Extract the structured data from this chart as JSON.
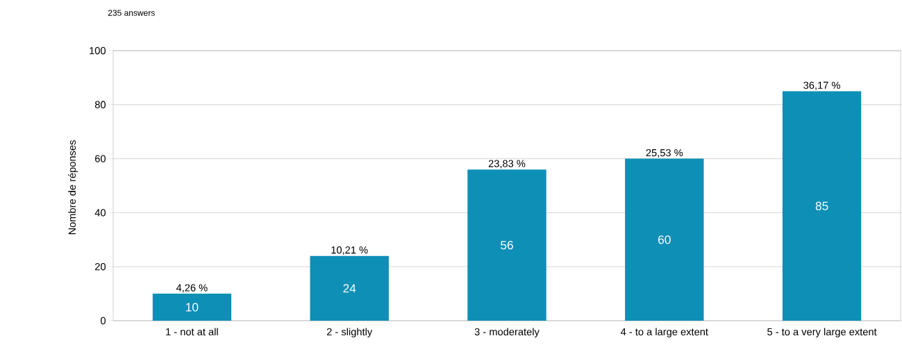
{
  "chart_data": {
    "type": "bar",
    "title": "235 answers",
    "ylabel": "Nombre de réponses",
    "categories": [
      "1 - not at all",
      "2 - slightly",
      "3 - moderately",
      "4 - to a large extent",
      "5 - to a very large extent"
    ],
    "values": [
      10,
      24,
      56,
      60,
      85
    ],
    "value_labels": [
      "10",
      "24",
      "56",
      "60",
      "85"
    ],
    "annotations": [
      {
        "text": "4,26 %",
        "x": "1 - not at all",
        "y": 10
      },
      {
        "text": "10,21 %",
        "x": "2 - slightly",
        "y": 24
      },
      {
        "text": "23,83 %",
        "x": "3 - moderately",
        "y": 56
      },
      {
        "text": "25,53 %",
        "x": "4 - to a large extent",
        "y": 60
      },
      {
        "text": "36,17 %",
        "x": "5 - to a very large extent",
        "y": 85
      }
    ],
    "color": "#0e8fb6",
    "ylim": [
      0,
      100
    ],
    "yticks": [
      0,
      20,
      40,
      60,
      80,
      100
    ],
    "grid": "y"
  }
}
